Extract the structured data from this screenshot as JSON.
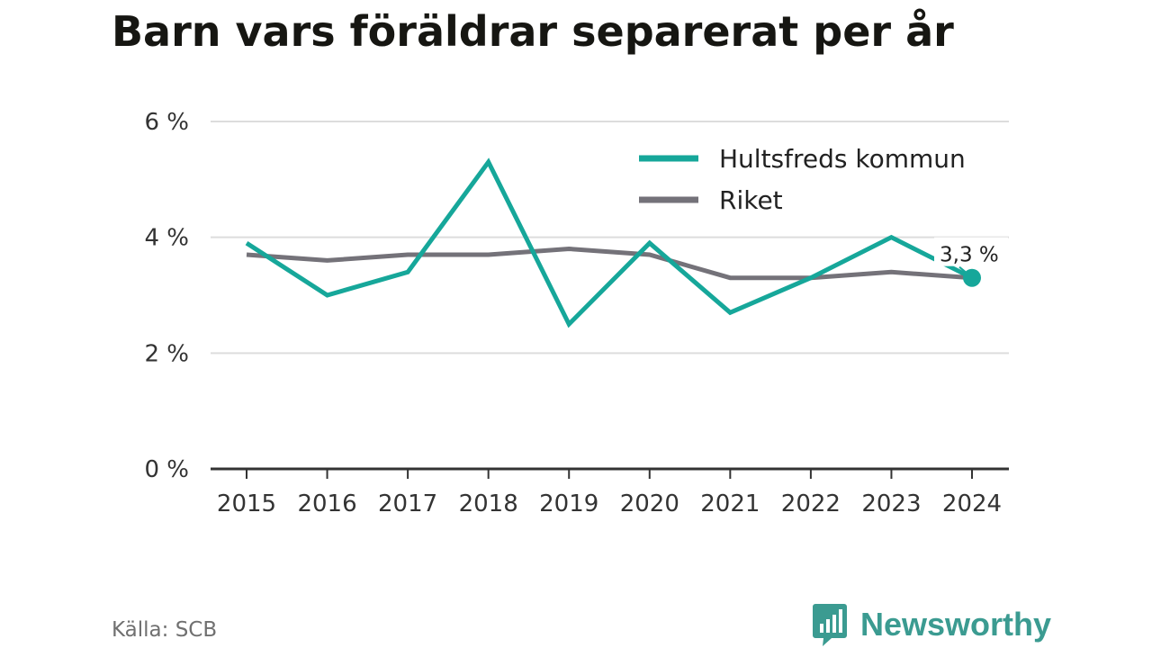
{
  "title": "Barn vars föräldrar separerat per år",
  "source": "Källa: SCB",
  "logo": {
    "text": "Newsworthy",
    "icon": "newsworthy-chart-bubble-icon",
    "color": "#3b9b91"
  },
  "chart_data": {
    "type": "line",
    "title": "Barn vars föräldrar separerat per år",
    "xlabel": "",
    "ylabel": "",
    "categories": [
      "2015",
      "2016",
      "2017",
      "2018",
      "2019",
      "2020",
      "2021",
      "2022",
      "2023",
      "2024"
    ],
    "yticks": [
      0,
      2,
      4,
      6
    ],
    "ytick_labels": [
      "0 %",
      "2 %",
      "4 %",
      "6 %"
    ],
    "ylim": [
      0,
      6
    ],
    "grid": true,
    "legend_position": "top-right",
    "series": [
      {
        "name": "Hultsfreds kommun",
        "color": "#16a79a",
        "values": [
          3.9,
          3.0,
          3.4,
          5.3,
          2.5,
          3.9,
          2.7,
          3.3,
          4.0,
          3.3
        ],
        "end_label": "3,3 %"
      },
      {
        "name": "Riket",
        "color": "#747279",
        "values": [
          3.7,
          3.6,
          3.7,
          3.7,
          3.8,
          3.7,
          3.3,
          3.3,
          3.4,
          3.3
        ]
      }
    ]
  }
}
